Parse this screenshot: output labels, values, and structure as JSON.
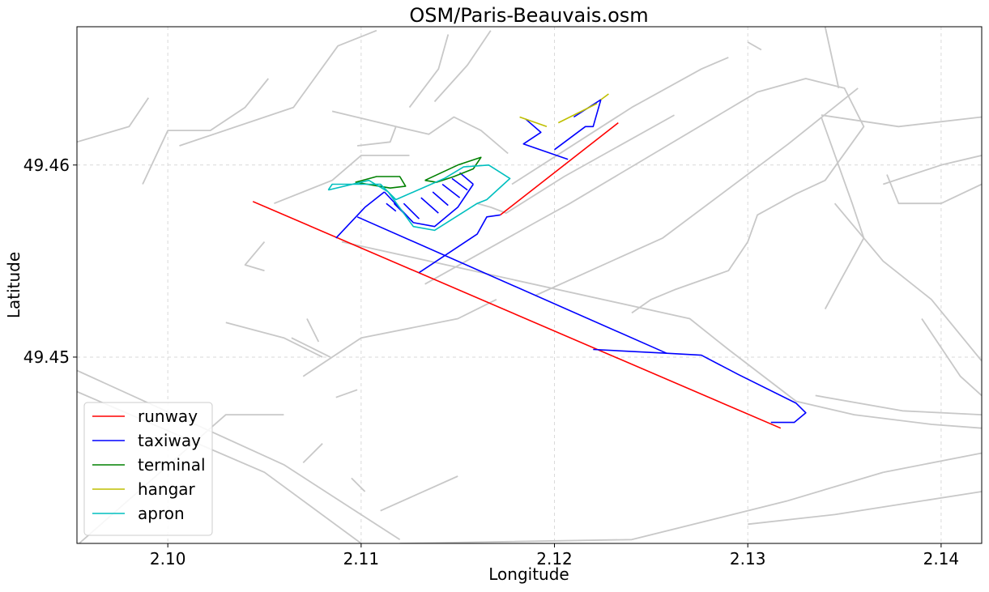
{
  "chart_data": {
    "type": "line",
    "title": "OSM/Paris-Beauvais.osm",
    "xlabel": "Longitude",
    "ylabel": "Latitude",
    "xlim": [
      2.0953,
      2.1421
    ],
    "ylim": [
      49.4403,
      49.4672
    ],
    "x_ticks": [
      {
        "value": 2.1,
        "label": "2.10"
      },
      {
        "value": 2.11,
        "label": "2.11"
      },
      {
        "value": 2.12,
        "label": "2.12"
      },
      {
        "value": 2.13,
        "label": "2.13"
      },
      {
        "value": 2.14,
        "label": "2.14"
      }
    ],
    "y_ticks": [
      {
        "value": 49.45,
        "label": "49.45"
      },
      {
        "value": 49.46,
        "label": "49.46"
      }
    ],
    "grid": true,
    "legend_position": "lower-left",
    "colors": {
      "runway": "#ff0000",
      "taxiway": "#0000ff",
      "terminal": "#008000",
      "hangar": "#bfbf00",
      "apron": "#00bfbf",
      "road": "#c8c8c8"
    },
    "legend": [
      "runway",
      "taxiway",
      "terminal",
      "hangar",
      "apron"
    ],
    "series": [
      {
        "name": "runway",
        "paths": [
          [
            [
              2.1044,
              49.4581
            ],
            [
              2.1317,
              49.4463
            ]
          ],
          [
            [
              2.1172,
              49.4574
            ],
            [
              2.1233,
              49.4622
            ]
          ]
        ]
      },
      {
        "name": "taxiway",
        "paths": [
          [
            [
              2.1087,
              49.4562
            ],
            [
              2.1102,
              49.4578
            ],
            [
              2.1112,
              49.4586
            ]
          ],
          [
            [
              2.1098,
              49.4573
            ],
            [
              2.1258,
              49.4502
            ],
            [
              2.1276,
              49.4501
            ],
            [
              2.1295,
              49.4491
            ],
            [
              2.1325,
              49.4476
            ],
            [
              2.133,
              49.4471
            ],
            [
              2.1324,
              49.4466
            ],
            [
              2.1312,
              49.4466
            ]
          ],
          [
            [
              2.122,
              49.4504
            ],
            [
              2.1258,
              49.4502
            ]
          ],
          [
            [
              2.113,
              49.4544
            ],
            [
              2.116,
              49.4564
            ],
            [
              2.1165,
              49.4573
            ],
            [
              2.1172,
              49.4574
            ]
          ],
          [
            [
              2.1112,
              49.4586
            ],
            [
              2.1127,
              49.457
            ],
            [
              2.1138,
              49.4568
            ],
            [
              2.115,
              49.4578
            ],
            [
              2.1158,
              49.459
            ]
          ],
          [
            [
              2.1118,
              49.4576
            ],
            [
              2.1113,
              49.458
            ]
          ],
          [
            [
              2.1124,
              49.4573
            ],
            [
              2.1117,
              49.458
            ]
          ],
          [
            [
              2.113,
              49.4572
            ],
            [
              2.1122,
              49.458
            ]
          ],
          [
            [
              2.114,
              49.4575
            ],
            [
              2.1131,
              49.4583
            ]
          ],
          [
            [
              2.1145,
              49.4579
            ],
            [
              2.1137,
              49.4586
            ]
          ],
          [
            [
              2.1151,
              49.4583
            ],
            [
              2.1142,
              49.459
            ]
          ],
          [
            [
              2.1155,
              49.4587
            ],
            [
              2.1147,
              49.4593
            ]
          ],
          [
            [
              2.1158,
              49.459
            ],
            [
              2.1151,
              49.4596
            ]
          ],
          [
            [
              2.1207,
              49.4603
            ],
            [
              2.1184,
              49.4611
            ],
            [
              2.1193,
              49.4617
            ],
            [
              2.1185,
              49.4624
            ]
          ],
          [
            [
              2.12,
              49.4608
            ],
            [
              2.1216,
              49.462
            ],
            [
              2.122,
              49.462
            ],
            [
              2.1224,
              49.4634
            ],
            [
              2.121,
              49.4625
            ]
          ]
        ]
      },
      {
        "name": "terminal",
        "paths": [
          [
            [
              2.1097,
              49.4591
            ],
            [
              2.1108,
              49.4594
            ],
            [
              2.112,
              49.4594
            ],
            [
              2.1123,
              49.4589
            ],
            [
              2.1115,
              49.4588
            ],
            [
              2.1097,
              49.4591
            ]
          ],
          [
            [
              2.1133,
              49.4592
            ],
            [
              2.115,
              49.46
            ],
            [
              2.1162,
              49.4604
            ],
            [
              2.1158,
              49.4598
            ],
            [
              2.1148,
              49.4594
            ],
            [
              2.1139,
              49.4591
            ],
            [
              2.1133,
              49.4592
            ]
          ]
        ]
      },
      {
        "name": "hangar",
        "paths": [
          [
            [
              2.1182,
              49.4625
            ],
            [
              2.1196,
              49.462
            ]
          ],
          [
            [
              2.1202,
              49.4622
            ],
            [
              2.1222,
              49.4632
            ]
          ],
          [
            [
              2.1224,
              49.4634
            ],
            [
              2.1228,
              49.4637
            ]
          ]
        ]
      },
      {
        "name": "apron",
        "paths": [
          [
            [
              2.1083,
              49.4587
            ],
            [
              2.1104,
              49.4592
            ],
            [
              2.1114,
              49.4586
            ],
            [
              2.1127,
              49.4568
            ],
            [
              2.1138,
              49.4566
            ],
            [
              2.116,
              49.458
            ],
            [
              2.1165,
              49.4582
            ],
            [
              2.1177,
              49.4593
            ],
            [
              2.1166,
              49.46
            ],
            [
              2.1153,
              49.4599
            ],
            [
              2.1143,
              49.4593
            ],
            [
              2.1118,
              49.4582
            ],
            [
              2.111,
              49.459
            ],
            [
              2.1085,
              49.459
            ],
            [
              2.1083,
              49.4587
            ]
          ]
        ]
      }
    ],
    "background_roads": [
      [
        [
          2.0953,
          49.4493
        ],
        [
          2.106,
          49.4444
        ],
        [
          2.112,
          49.4405
        ]
      ],
      [
        [
          2.0953,
          49.4482
        ],
        [
          2.105,
          49.444
        ],
        [
          2.11,
          49.4403
        ]
      ],
      [
        [
          2.0953,
          49.4402
        ],
        [
          2.103,
          49.447
        ],
        [
          2.106,
          49.447
        ]
      ],
      [
        [
          2.1085,
          49.4628
        ],
        [
          2.1118,
          49.462
        ],
        [
          2.1135,
          49.4616
        ],
        [
          2.1148,
          49.4625
        ],
        [
          2.1162,
          49.4618
        ],
        [
          2.1176,
          49.4606
        ]
      ],
      [
        [
          2.1125,
          49.463
        ],
        [
          2.114,
          49.465
        ],
        [
          2.1145,
          49.4668
        ]
      ],
      [
        [
          2.1138,
          49.4633
        ],
        [
          2.1155,
          49.4652
        ],
        [
          2.1167,
          49.467
        ]
      ],
      [
        [
          2.1006,
          49.461
        ],
        [
          2.1065,
          49.463
        ],
        [
          2.1088,
          49.4662
        ],
        [
          2.1108,
          49.467
        ]
      ],
      [
        [
          2.0987,
          49.459
        ],
        [
          2.1,
          49.4618
        ],
        [
          2.1022,
          49.4618
        ],
        [
          2.104,
          49.463
        ],
        [
          2.1052,
          49.4645
        ]
      ],
      [
        [
          2.1055,
          49.458
        ],
        [
          2.1085,
          49.4592
        ],
        [
          2.11,
          49.4605
        ],
        [
          2.1125,
          49.4605
        ]
      ],
      [
        [
          2.116,
          49.458
        ],
        [
          2.1167,
          49.4578
        ],
        [
          2.1175,
          49.4575
        ],
        [
          2.1205,
          49.4594
        ],
        [
          2.1262,
          49.4626
        ]
      ],
      [
        [
          2.1098,
          49.461
        ],
        [
          2.1115,
          49.4612
        ],
        [
          2.1118,
          49.462
        ]
      ],
      [
        [
          2.1178,
          49.459
        ],
        [
          2.124,
          49.463
        ],
        [
          2.1276,
          49.465
        ],
        [
          2.129,
          49.4656
        ]
      ],
      [
        [
          2.109,
          49.456
        ],
        [
          2.127,
          49.452
        ],
        [
          2.129,
          49.4504
        ],
        [
          2.1325,
          49.4477
        ],
        [
          2.1355,
          49.447
        ],
        [
          2.1395,
          49.4465
        ],
        [
          2.1421,
          49.4463
        ]
      ],
      [
        [
          2.1133,
          49.4538
        ],
        [
          2.119,
          49.457
        ],
        [
          2.1208,
          49.458
        ],
        [
          2.1305,
          49.4638
        ],
        [
          2.133,
          49.4645
        ],
        [
          2.135,
          49.464
        ],
        [
          2.136,
          49.462
        ],
        [
          2.134,
          49.4592
        ],
        [
          2.1325,
          49.4585
        ],
        [
          2.1305,
          49.4574
        ],
        [
          2.13,
          49.456
        ],
        [
          2.129,
          49.4545
        ],
        [
          2.1262,
          49.4535
        ],
        [
          2.125,
          49.453
        ],
        [
          2.124,
          49.4523
        ]
      ],
      [
        [
          2.119,
          49.4532
        ],
        [
          2.1256,
          49.4562
        ],
        [
          2.1321,
          49.4611
        ],
        [
          2.1357,
          49.464
        ]
      ],
      [
        [
          2.1338,
          49.4626
        ],
        [
          2.1378,
          49.462
        ],
        [
          2.1421,
          49.4625
        ]
      ],
      [
        [
          2.1338,
          49.4625
        ],
        [
          2.1354,
          49.458
        ],
        [
          2.136,
          49.4562
        ],
        [
          2.1348,
          49.454
        ],
        [
          2.134,
          49.4525
        ]
      ],
      [
        [
          2.13,
          49.4664
        ],
        [
          2.1307,
          49.466
        ]
      ],
      [
        [
          2.134,
          49.4672
        ],
        [
          2.1347,
          49.464
        ]
      ],
      [
        [
          2.137,
          49.459
        ],
        [
          2.14,
          49.46
        ],
        [
          2.1421,
          49.4605
        ]
      ],
      [
        [
          2.1372,
          49.4595
        ],
        [
          2.1378,
          49.458
        ],
        [
          2.14,
          49.458
        ],
        [
          2.1421,
          49.459
        ]
      ],
      [
        [
          2.1345,
          49.458
        ],
        [
          2.137,
          49.455
        ],
        [
          2.1395,
          49.453
        ],
        [
          2.1421,
          49.4498
        ]
      ],
      [
        [
          2.139,
          49.452
        ],
        [
          2.141,
          49.449
        ],
        [
          2.1421,
          49.448
        ]
      ],
      [
        [
          2.137,
          49.444
        ],
        [
          2.1421,
          49.445
        ]
      ],
      [
        [
          2.1335,
          49.448
        ],
        [
          2.138,
          49.4472
        ],
        [
          2.1421,
          49.447
        ]
      ],
      [
        [
          2.112,
          49.4403
        ],
        [
          2.124,
          49.4405
        ],
        [
          2.132,
          49.4425
        ],
        [
          2.137,
          49.444
        ]
      ],
      [
        [
          2.13,
          49.4413
        ],
        [
          2.1345,
          49.4418
        ],
        [
          2.1421,
          49.443
        ]
      ],
      [
        [
          2.111,
          49.442
        ],
        [
          2.115,
          49.4438
        ]
      ],
      [
        [
          2.107,
          49.4445
        ],
        [
          2.108,
          49.4455
        ]
      ],
      [
        [
          2.107,
          49.449
        ],
        [
          2.11,
          49.451
        ],
        [
          2.115,
          49.452
        ],
        [
          2.117,
          49.453
        ]
      ],
      [
        [
          2.103,
          49.4518
        ],
        [
          2.106,
          49.451
        ],
        [
          2.108,
          49.45
        ]
      ],
      [
        [
          2.105,
          49.456
        ],
        [
          2.104,
          49.4548
        ],
        [
          2.105,
          49.4545
        ]
      ],
      [
        [
          2.1064,
          49.451
        ],
        [
          2.1084,
          49.45
        ]
      ],
      [
        [
          2.1087,
          49.4479
        ],
        [
          2.1098,
          49.4483
        ]
      ],
      [
        [
          2.1072,
          49.452
        ],
        [
          2.1078,
          49.4508
        ]
      ],
      [
        [
          2.1102,
          49.443
        ],
        [
          2.1095,
          49.4437
        ]
      ],
      [
        [
          2.0953,
          49.4612
        ],
        [
          2.098,
          49.462
        ],
        [
          2.099,
          49.4635
        ]
      ]
    ]
  }
}
